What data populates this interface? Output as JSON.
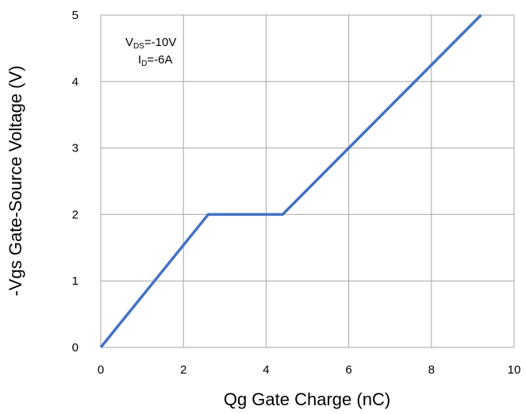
{
  "chart_data": {
    "type": "line",
    "title": "",
    "xlabel": "Qg Gate Charge (nC)",
    "ylabel": "-Vgs Gate-Source Voltage (V)",
    "xlim": [
      0,
      10
    ],
    "ylim": [
      0,
      5
    ],
    "x_ticks": [
      "0",
      "2",
      "4",
      "6",
      "8",
      "10"
    ],
    "y_ticks": [
      "0",
      "1",
      "2",
      "3",
      "4",
      "5"
    ],
    "grid": true,
    "series": [
      {
        "color": "#4472C4",
        "x": [
          0,
          2.6,
          4.4,
          9.2
        ],
        "y": [
          0,
          2.0,
          2.0,
          5.0
        ]
      }
    ],
    "annotations": {
      "vds": {
        "main": "V",
        "sub": "DS",
        "rest": "=-10V"
      },
      "id": {
        "main": "I",
        "sub": "D",
        "rest": "=-6A"
      }
    }
  }
}
